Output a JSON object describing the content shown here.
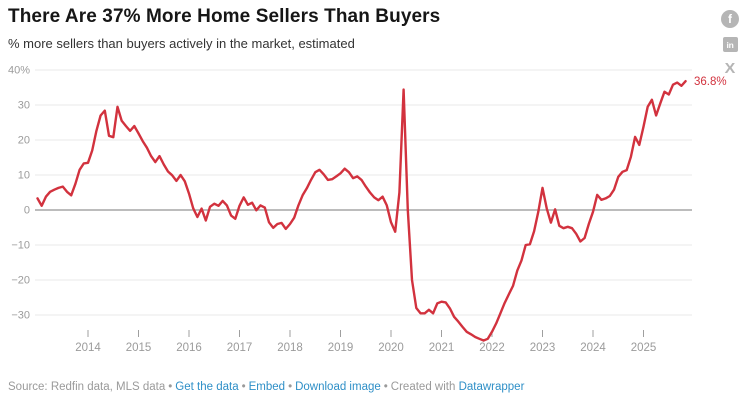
{
  "header": {
    "title": "There Are 37% More Home Sellers Than Buyers",
    "subtitle": "% more sellers than buyers actively in the market, estimated"
  },
  "social": {
    "facebook_glyph": "f",
    "linkedin_glyph": "in",
    "x_glyph": "X"
  },
  "colors": {
    "line_red": "#d2323e",
    "link_blue": "#2e8fc7",
    "axis_gray": "#9b9b9b",
    "grid_gray": "#e9e9e9",
    "zero_line_gray": "#a6a6a6"
  },
  "chart_data": {
    "type": "line",
    "title": "There Are 37% More Home Sellers Than Buyers",
    "subtitle": "% more sellers than buyers actively in the market, estimated",
    "unit": "%",
    "frequency": "monthly",
    "x_start": "2013-01",
    "x_end": "2025-11",
    "x_tick_labels": [
      "2014",
      "2015",
      "2016",
      "2017",
      "2018",
      "2019",
      "2020",
      "2021",
      "2022",
      "2023",
      "2024",
      "2025"
    ],
    "y_ticks": [
      40,
      30,
      20,
      10,
      0,
      -10,
      -20,
      -30
    ],
    "y_top_tick_suffix": "%",
    "ylim": [
      -40,
      40
    ],
    "grid": true,
    "legend": "none",
    "end_label": "36.8%",
    "series": [
      {
        "name": "% more sellers than buyers",
        "values": [
          3.3,
          1.2,
          3.8,
          5.2,
          5.8,
          6.3,
          6.7,
          5.2,
          4.2,
          7.5,
          11.5,
          13.3,
          13.5,
          17.0,
          22.6,
          27.0,
          28.4,
          21.2,
          20.8,
          29.5,
          25.5,
          24.0,
          22.6,
          24.0,
          21.9,
          19.7,
          17.8,
          15.4,
          13.7,
          15.4,
          13.0,
          11.0,
          9.9,
          8.3,
          10.0,
          8.2,
          4.7,
          0.5,
          -2.0,
          0.4,
          -3.0,
          0.9,
          1.8,
          1.2,
          2.6,
          1.3,
          -1.6,
          -2.5,
          1.2,
          3.6,
          1.5,
          2.1,
          -0.1,
          1.3,
          0.7,
          -3.5,
          -5.1,
          -4.0,
          -3.7,
          -5.4,
          -4.0,
          -2.2,
          1.3,
          4.2,
          6.2,
          8.6,
          10.8,
          11.5,
          10.2,
          8.6,
          8.8,
          9.6,
          10.5,
          11.8,
          10.8,
          9.1,
          9.6,
          8.6,
          6.7,
          5.0,
          3.6,
          2.8,
          3.8,
          1.3,
          -3.5,
          -6.2,
          5.0,
          34.4,
          0.0,
          -20.0,
          -28.0,
          -29.5,
          -29.5,
          -28.5,
          -29.5,
          -26.7,
          -26.2,
          -26.4,
          -28.1,
          -30.5,
          -31.9,
          -33.4,
          -34.8,
          -35.5,
          -36.3,
          -36.8,
          -37.3,
          -36.8,
          -34.8,
          -32.4,
          -29.5,
          -26.6,
          -24.1,
          -21.7,
          -17.3,
          -14.4,
          -10.0,
          -9.8,
          -6.1,
          -0.5,
          6.3,
          0.5,
          -3.6,
          0.2,
          -4.5,
          -5.2,
          -4.8,
          -5.2,
          -6.8,
          -9.0,
          -8.0,
          -4.0,
          -0.5,
          4.3,
          2.9,
          3.3,
          4.0,
          5.8,
          9.5,
          10.9,
          11.4,
          15.2,
          20.9,
          18.6,
          23.8,
          29.5,
          31.5,
          27.0,
          30.5,
          33.8,
          33.0,
          35.8,
          36.4,
          35.5,
          36.8
        ]
      }
    ]
  },
  "footer": {
    "source_label": "Source: Redfin data, MLS data",
    "separator": "•",
    "links": {
      "get_data": "Get the data",
      "embed": "Embed",
      "download": "Download image"
    },
    "created_with": "Created with",
    "created_link": "Datawrapper"
  }
}
